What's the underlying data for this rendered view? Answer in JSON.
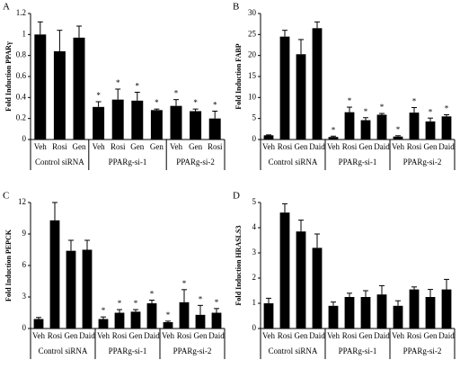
{
  "chart_data": [
    {
      "type": "bar",
      "panel_label": "A",
      "ylabel": "Fold Induction PPARγ",
      "color": "#000000",
      "ylim": [
        0,
        1.2
      ],
      "yticks": [
        0,
        0.2,
        0.4,
        0.6,
        0.8,
        1,
        1.2
      ],
      "significance_label": "*",
      "groups": [
        {
          "name": "Control siRNA",
          "categories": [
            "Veh",
            "Rosi",
            "Gen"
          ],
          "values": [
            1.0,
            0.84,
            0.97
          ],
          "errors": [
            0.12,
            0.2,
            0.11
          ],
          "significant": [
            false,
            false,
            false
          ]
        },
        {
          "name": "PPARg-si-1",
          "categories": [
            "Veh",
            "Rosi",
            "Gen",
            "Gen"
          ],
          "values": [
            0.31,
            0.38,
            0.37,
            0.28
          ],
          "errors": [
            0.05,
            0.1,
            0.08,
            0.01
          ],
          "significant": [
            true,
            true,
            true,
            true
          ]
        },
        {
          "name": "PPARg-si-2",
          "categories": [
            "Veh",
            "Gen",
            "Rosi"
          ],
          "values": [
            0.32,
            0.27,
            0.2
          ],
          "errors": [
            0.06,
            0.02,
            0.07
          ],
          "significant": [
            true,
            true,
            true
          ]
        }
      ]
    },
    {
      "type": "bar",
      "panel_label": "B",
      "ylabel": "Fold Induction FABP",
      "color": "#000000",
      "ylim": [
        0,
        30
      ],
      "yticks": [
        0,
        5,
        10,
        15,
        20,
        25,
        30
      ],
      "significance_label": "*",
      "groups": [
        {
          "name": "Control siRNA",
          "categories": [
            "Veh",
            "Rosi",
            "Gen",
            "Daid"
          ],
          "values": [
            1.0,
            24.5,
            20.3,
            26.5
          ],
          "errors": [
            0.1,
            1.5,
            3.5,
            1.5
          ],
          "significant": [
            false,
            false,
            false,
            false
          ]
        },
        {
          "name": "PPARg-si-1",
          "categories": [
            "Veh",
            "Rosi",
            "Gen",
            "Daid"
          ],
          "values": [
            0.6,
            6.5,
            4.6,
            5.9
          ],
          "errors": [
            0.2,
            1.2,
            0.6,
            0.3
          ],
          "significant": [
            true,
            true,
            true,
            true
          ]
        },
        {
          "name": "PPARg-si-2",
          "categories": [
            "Veh",
            "Rosi",
            "Gen",
            "Daid"
          ],
          "values": [
            0.7,
            6.4,
            4.3,
            5.5
          ],
          "errors": [
            0.2,
            1.2,
            0.8,
            0.4
          ],
          "significant": [
            true,
            true,
            true,
            true
          ]
        }
      ]
    },
    {
      "type": "bar",
      "panel_label": "C",
      "ylabel": "Fold Induction PEPCK",
      "color": "#000000",
      "ylim": [
        0,
        12
      ],
      "yticks": [
        0,
        3,
        6,
        9,
        12
      ],
      "significance_label": "*",
      "groups": [
        {
          "name": "Control siRNA",
          "categories": [
            "Veh",
            "Rosi",
            "Gen",
            "Daid"
          ],
          "values": [
            0.9,
            10.3,
            7.4,
            7.5
          ],
          "errors": [
            0.15,
            1.7,
            1.0,
            0.9
          ],
          "significant": [
            false,
            false,
            false,
            false
          ]
        },
        {
          "name": "PPARg-si-1",
          "categories": [
            "Veh",
            "Rosi",
            "Gen",
            "Daid"
          ],
          "values": [
            0.9,
            1.5,
            1.6,
            2.4
          ],
          "errors": [
            0.2,
            0.3,
            0.2,
            0.3
          ],
          "significant": [
            true,
            true,
            true,
            true
          ]
        },
        {
          "name": "PPARg-si-2",
          "categories": [
            "Veh",
            "Rosi",
            "Gen",
            "Daid"
          ],
          "values": [
            0.6,
            2.5,
            1.3,
            1.5
          ],
          "errors": [
            0.1,
            1.2,
            0.9,
            0.4
          ],
          "significant": [
            true,
            true,
            true,
            true
          ]
        }
      ]
    },
    {
      "type": "bar",
      "panel_label": "D",
      "ylabel": "Fold Induction HRASLS3",
      "color": "#000000",
      "ylim": [
        0,
        5
      ],
      "yticks": [
        0,
        1,
        2,
        3,
        4,
        5
      ],
      "significance_label": "*",
      "groups": [
        {
          "name": "Control siRNA",
          "categories": [
            "Veh",
            "Rosi",
            "Gen",
            "Daid"
          ],
          "values": [
            1.0,
            4.6,
            3.85,
            3.2
          ],
          "errors": [
            0.2,
            0.35,
            0.45,
            0.55
          ],
          "significant": [
            false,
            false,
            false,
            false
          ]
        },
        {
          "name": "PPARg-si-1",
          "categories": [
            "Veh",
            "Rosi",
            "Gen",
            "Daid"
          ],
          "values": [
            0.9,
            1.25,
            1.25,
            1.35
          ],
          "errors": [
            0.15,
            0.15,
            0.25,
            0.35
          ],
          "significant": [
            false,
            false,
            false,
            false
          ]
        },
        {
          "name": "PPARg-si-2",
          "categories": [
            "Veh",
            "Rosi",
            "Gen",
            "Daid"
          ],
          "values": [
            0.9,
            1.55,
            1.25,
            1.55
          ],
          "errors": [
            0.2,
            0.1,
            0.3,
            0.4
          ],
          "significant": [
            false,
            false,
            false,
            false
          ]
        }
      ]
    }
  ]
}
